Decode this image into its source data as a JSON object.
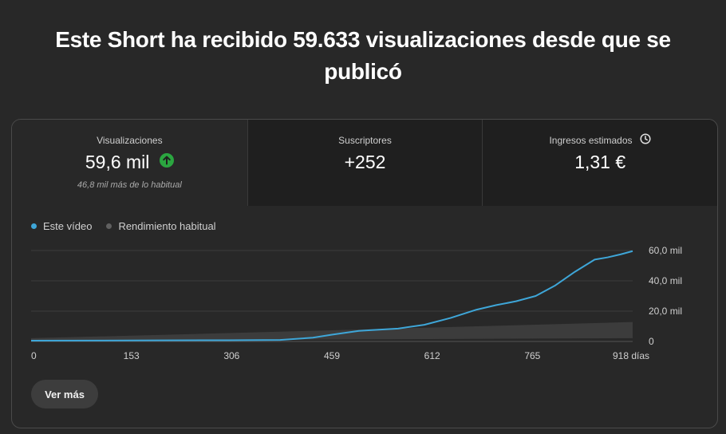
{
  "headline": "Este Short ha recibido 59.633 visualizaciones desde que se publicó",
  "metrics": [
    {
      "title": "Visualizaciones",
      "value": "59,6 mil",
      "sub": "46,8 mil más de lo habitual",
      "trend_icon": "arrow-up-circle-icon"
    },
    {
      "title": "Suscriptores",
      "value": "+252"
    },
    {
      "title": "Ingresos estimados",
      "value": "1,31 €",
      "title_icon": "clock-icon"
    }
  ],
  "colors": {
    "accent": "#3ea6d8",
    "trend_up": "#2ba640",
    "typical_band": "#3c3c3c",
    "legend_typical": "#606060"
  },
  "legend": {
    "this_video": "Este vídeo",
    "typical": "Rendimiento habitual"
  },
  "chart_data": {
    "type": "line",
    "x_unit": "días",
    "xlim": [
      0,
      918
    ],
    "ylim": [
      0,
      60000
    ],
    "x_ticks": [
      "0",
      "153",
      "306",
      "459",
      "612",
      "765",
      "918 días"
    ],
    "y_ticks": [
      "60,0 mil",
      "40,0 mil",
      "20,0 mil",
      "0"
    ],
    "y_tick_values": [
      60000,
      40000,
      20000,
      0
    ],
    "grid": true,
    "legend_position": "top-left",
    "series": [
      {
        "name": "Este vídeo",
        "x": [
          0,
          100,
          200,
          300,
          380,
          430,
          459,
          500,
          520,
          560,
          600,
          640,
          680,
          710,
          740,
          770,
          800,
          830,
          860,
          880,
          900,
          918
        ],
        "y": [
          500,
          600,
          700,
          800,
          1000,
          2500,
          4500,
          7000,
          7500,
          8500,
          11000,
          15500,
          21000,
          24000,
          26500,
          30000,
          37000,
          46000,
          54000,
          55500,
          57500,
          59600
        ]
      },
      {
        "name": "Rendimiento habitual",
        "x": [
          0,
          153,
          306,
          459,
          612,
          765,
          918
        ],
        "y_low": [
          600,
          800,
          1100,
          1300,
          1600,
          1900,
          2200
        ],
        "y_high": [
          2200,
          3800,
          5600,
          7400,
          9200,
          11000,
          12800
        ]
      }
    ]
  },
  "more_button": "Ver más"
}
